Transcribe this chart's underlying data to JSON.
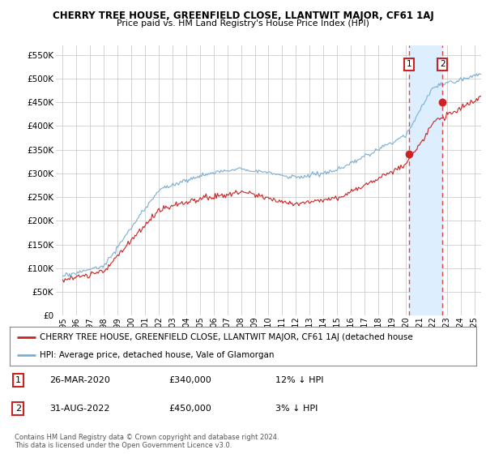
{
  "title": "CHERRY TREE HOUSE, GREENFIELD CLOSE, LLANTWIT MAJOR, CF61 1AJ",
  "subtitle": "Price paid vs. HM Land Registry's House Price Index (HPI)",
  "ylabel_ticks": [
    "£0",
    "£50K",
    "£100K",
    "£150K",
    "£200K",
    "£250K",
    "£300K",
    "£350K",
    "£400K",
    "£450K",
    "£500K",
    "£550K"
  ],
  "ytick_vals": [
    0,
    50000,
    100000,
    150000,
    200000,
    250000,
    300000,
    350000,
    400000,
    450000,
    500000,
    550000
  ],
  "ylim": [
    0,
    570000
  ],
  "xlim_start": 1994.5,
  "xlim_end": 2025.5,
  "hpi_color": "#7aadd4",
  "price_color": "#cc2222",
  "shade_color": "#ddeeff",
  "dashed_line_color": "#dd4444",
  "marker1_x": 2020.23,
  "marker1_y": 340000,
  "marker2_x": 2022.67,
  "marker2_y": 450000,
  "legend_price_label": "CHERRY TREE HOUSE, GREENFIELD CLOSE, LLANTWIT MAJOR, CF61 1AJ (detached house",
  "legend_hpi_label": "HPI: Average price, detached house, Vale of Glamorgan",
  "annotation1_num": "1",
  "annotation1_date": "26-MAR-2020",
  "annotation1_price": "£340,000",
  "annotation1_hpi": "12% ↓ HPI",
  "annotation2_num": "2",
  "annotation2_date": "31-AUG-2022",
  "annotation2_price": "£450,000",
  "annotation2_hpi": "3% ↓ HPI",
  "footer": "Contains HM Land Registry data © Crown copyright and database right 2024.\nThis data is licensed under the Open Government Licence v3.0.",
  "background_color": "#ffffff",
  "grid_color": "#cccccc"
}
